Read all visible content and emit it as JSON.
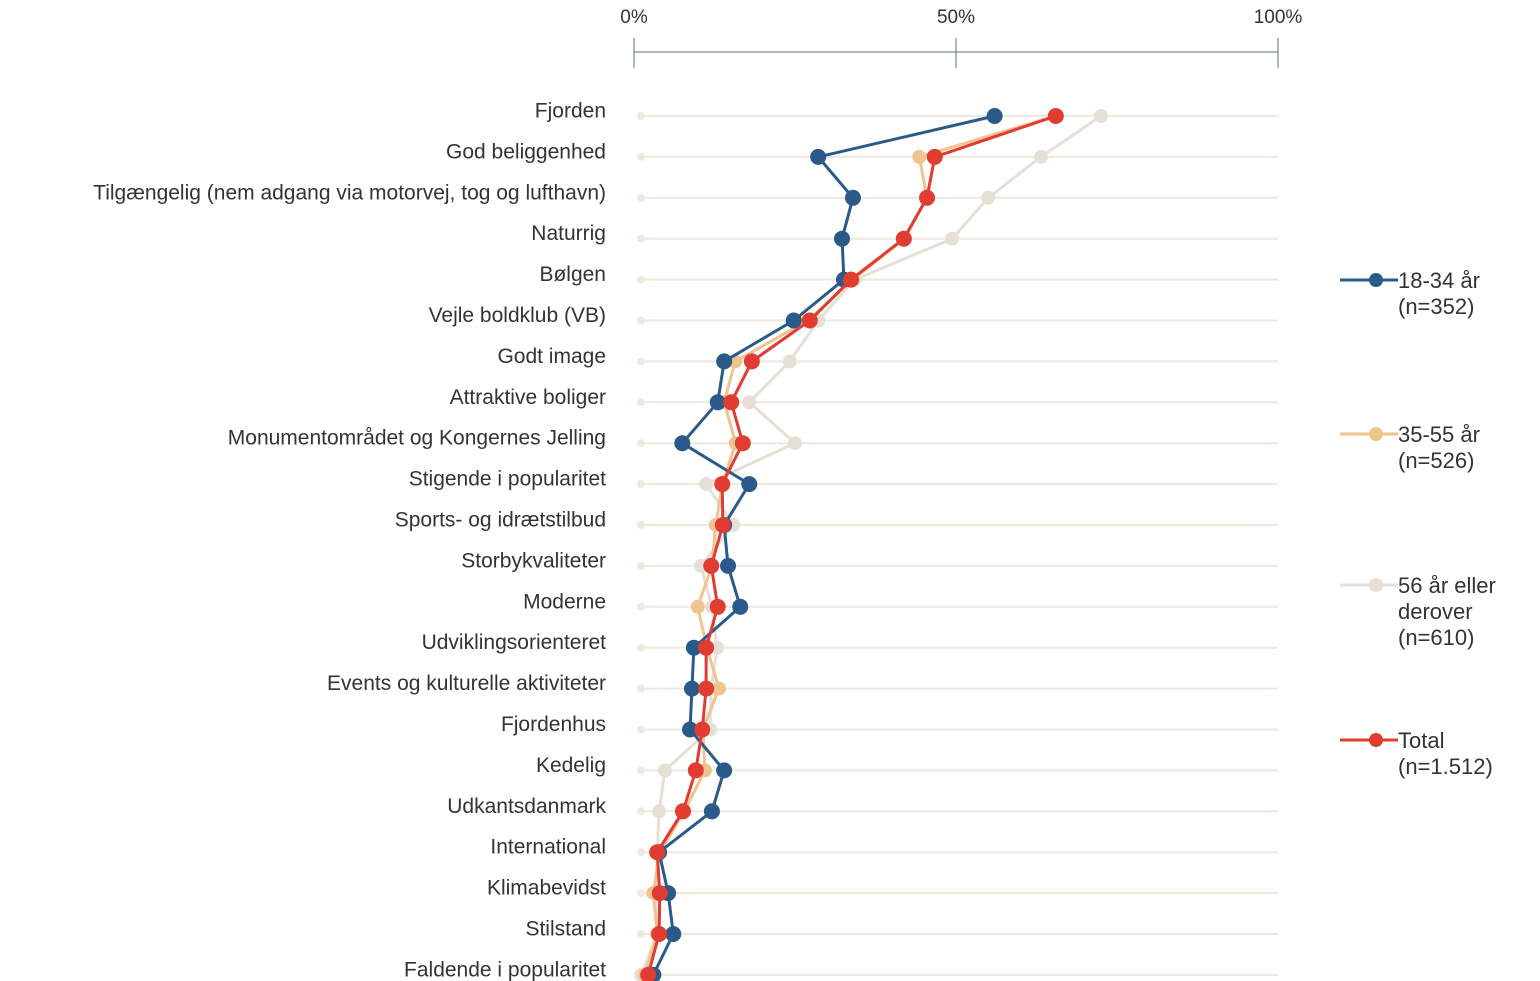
{
  "chart_data": {
    "type": "dot-line",
    "categories": [
      "Fjorden",
      "God beliggenhed",
      "Tilgængelig (nem adgang via motorvej, tog og lufthavn)",
      "Naturrig",
      "Bølgen",
      "Vejle boldklub (VB)",
      "Godt image",
      "Attraktive boliger",
      "Monumentområdet og Kongernes Jelling",
      "Stigende i popularitet",
      "Sports- og idrætstilbud",
      "Storbykvaliteter",
      "Moderne",
      "Udviklingsorienteret",
      "Events og kulturelle aktiviteter",
      "Fjordenhus",
      "Kedelig",
      "Udkantsdanmark",
      "International",
      "Klimabevidst",
      "Stilstand",
      "Faldende i popularitet"
    ],
    "series": [
      {
        "name": "18-34 år (n=352)",
        "color": "#2a5a8a",
        "values": [
          56,
          28.6,
          34,
          32.3,
          32.6,
          24.8,
          14,
          13,
          7.5,
          17.9,
          14,
          14.6,
          16.5,
          9.3,
          9,
          8.7,
          14,
          12.1,
          3.9,
          5.3,
          6.1,
          3
        ]
      },
      {
        "name": "35-55 år (n=526)",
        "color": "#f0c38f",
        "values": [
          65.4,
          44.3,
          45.5,
          42,
          34,
          27,
          15.7,
          14,
          15.8,
          13.7,
          12.7,
          12.1,
          9.9,
          11.3,
          13.2,
          10.7,
          11,
          7.8,
          4,
          3,
          3.6,
          1.7
        ]
      },
      {
        "name": "56 år eller derover (n=610)",
        "color": "#e6dfd6",
        "values": [
          72.5,
          63.2,
          55,
          49.4,
          34.3,
          28.6,
          24.2,
          17.9,
          25,
          11.2,
          15.4,
          10.4,
          12.1,
          12.9,
          12,
          11.8,
          4.8,
          3.9,
          3.6,
          3.4,
          3.6,
          1.1
        ]
      },
      {
        "name": "Total (n=1.512)",
        "color": "#e03c31",
        "values": [
          65.5,
          46.7,
          45.5,
          41.9,
          33.7,
          27.3,
          18.3,
          15.1,
          16.9,
          13.7,
          13.8,
          12,
          13,
          11.2,
          11.2,
          10.6,
          9.6,
          7.6,
          3.6,
          4,
          3.9,
          2.2
        ]
      }
    ],
    "xlim": [
      0,
      100
    ],
    "xticks": [
      {
        "value": 0,
        "label": "0%"
      },
      {
        "value": 50,
        "label": "50%"
      },
      {
        "value": 100,
        "label": "100%"
      }
    ]
  }
}
